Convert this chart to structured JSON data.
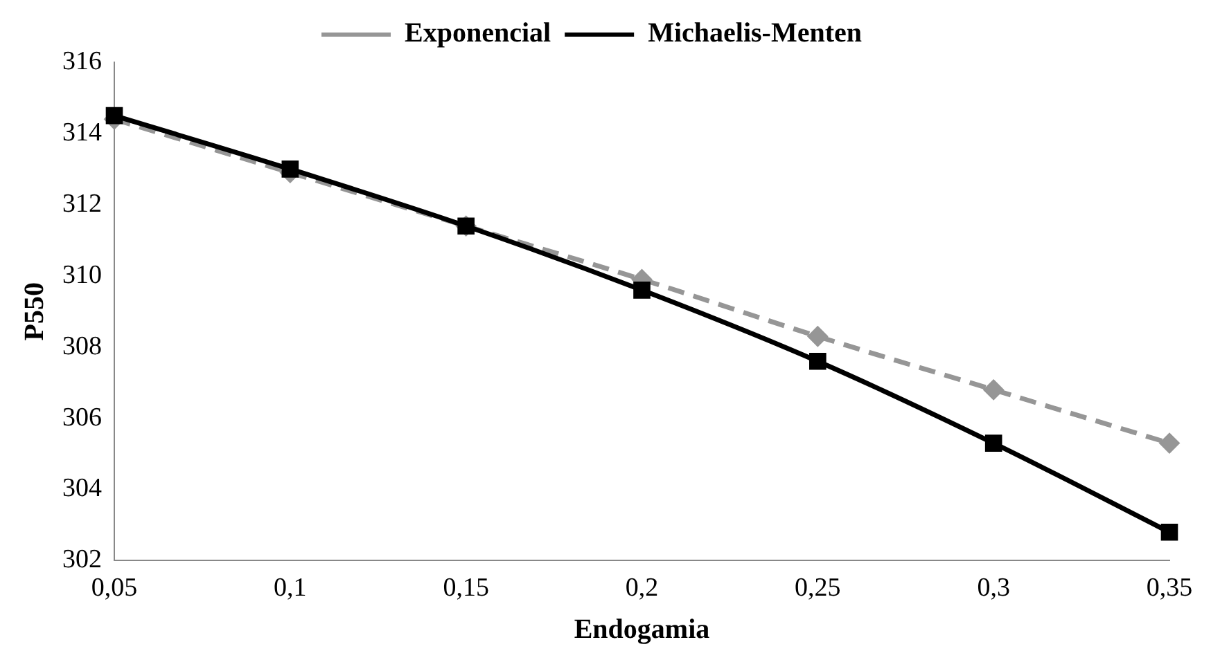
{
  "chart_data": {
    "type": "line",
    "xlabel": "Endogamia",
    "ylabel": "P550",
    "categories": [
      "0,05",
      "0,1",
      "0,15",
      "0,2",
      "0,25",
      "0,3",
      "0,35"
    ],
    "series": [
      {
        "name": "Exponencial",
        "color": "#969696",
        "marker": "diamond",
        "line_style": "dashed",
        "values": [
          314.4,
          312.9,
          311.4,
          309.9,
          308.3,
          306.8,
          305.3
        ]
      },
      {
        "name": "Michaelis-Menten",
        "color": "#000000",
        "marker": "square",
        "line_style": "solid",
        "values": [
          314.5,
          313.0,
          311.4,
          309.6,
          307.6,
          305.3,
          302.8
        ]
      }
    ],
    "ylim": [
      302,
      316
    ],
    "yticks": [
      302,
      304,
      306,
      308,
      310,
      312,
      314,
      316
    ],
    "grid": false,
    "legend": "top"
  }
}
